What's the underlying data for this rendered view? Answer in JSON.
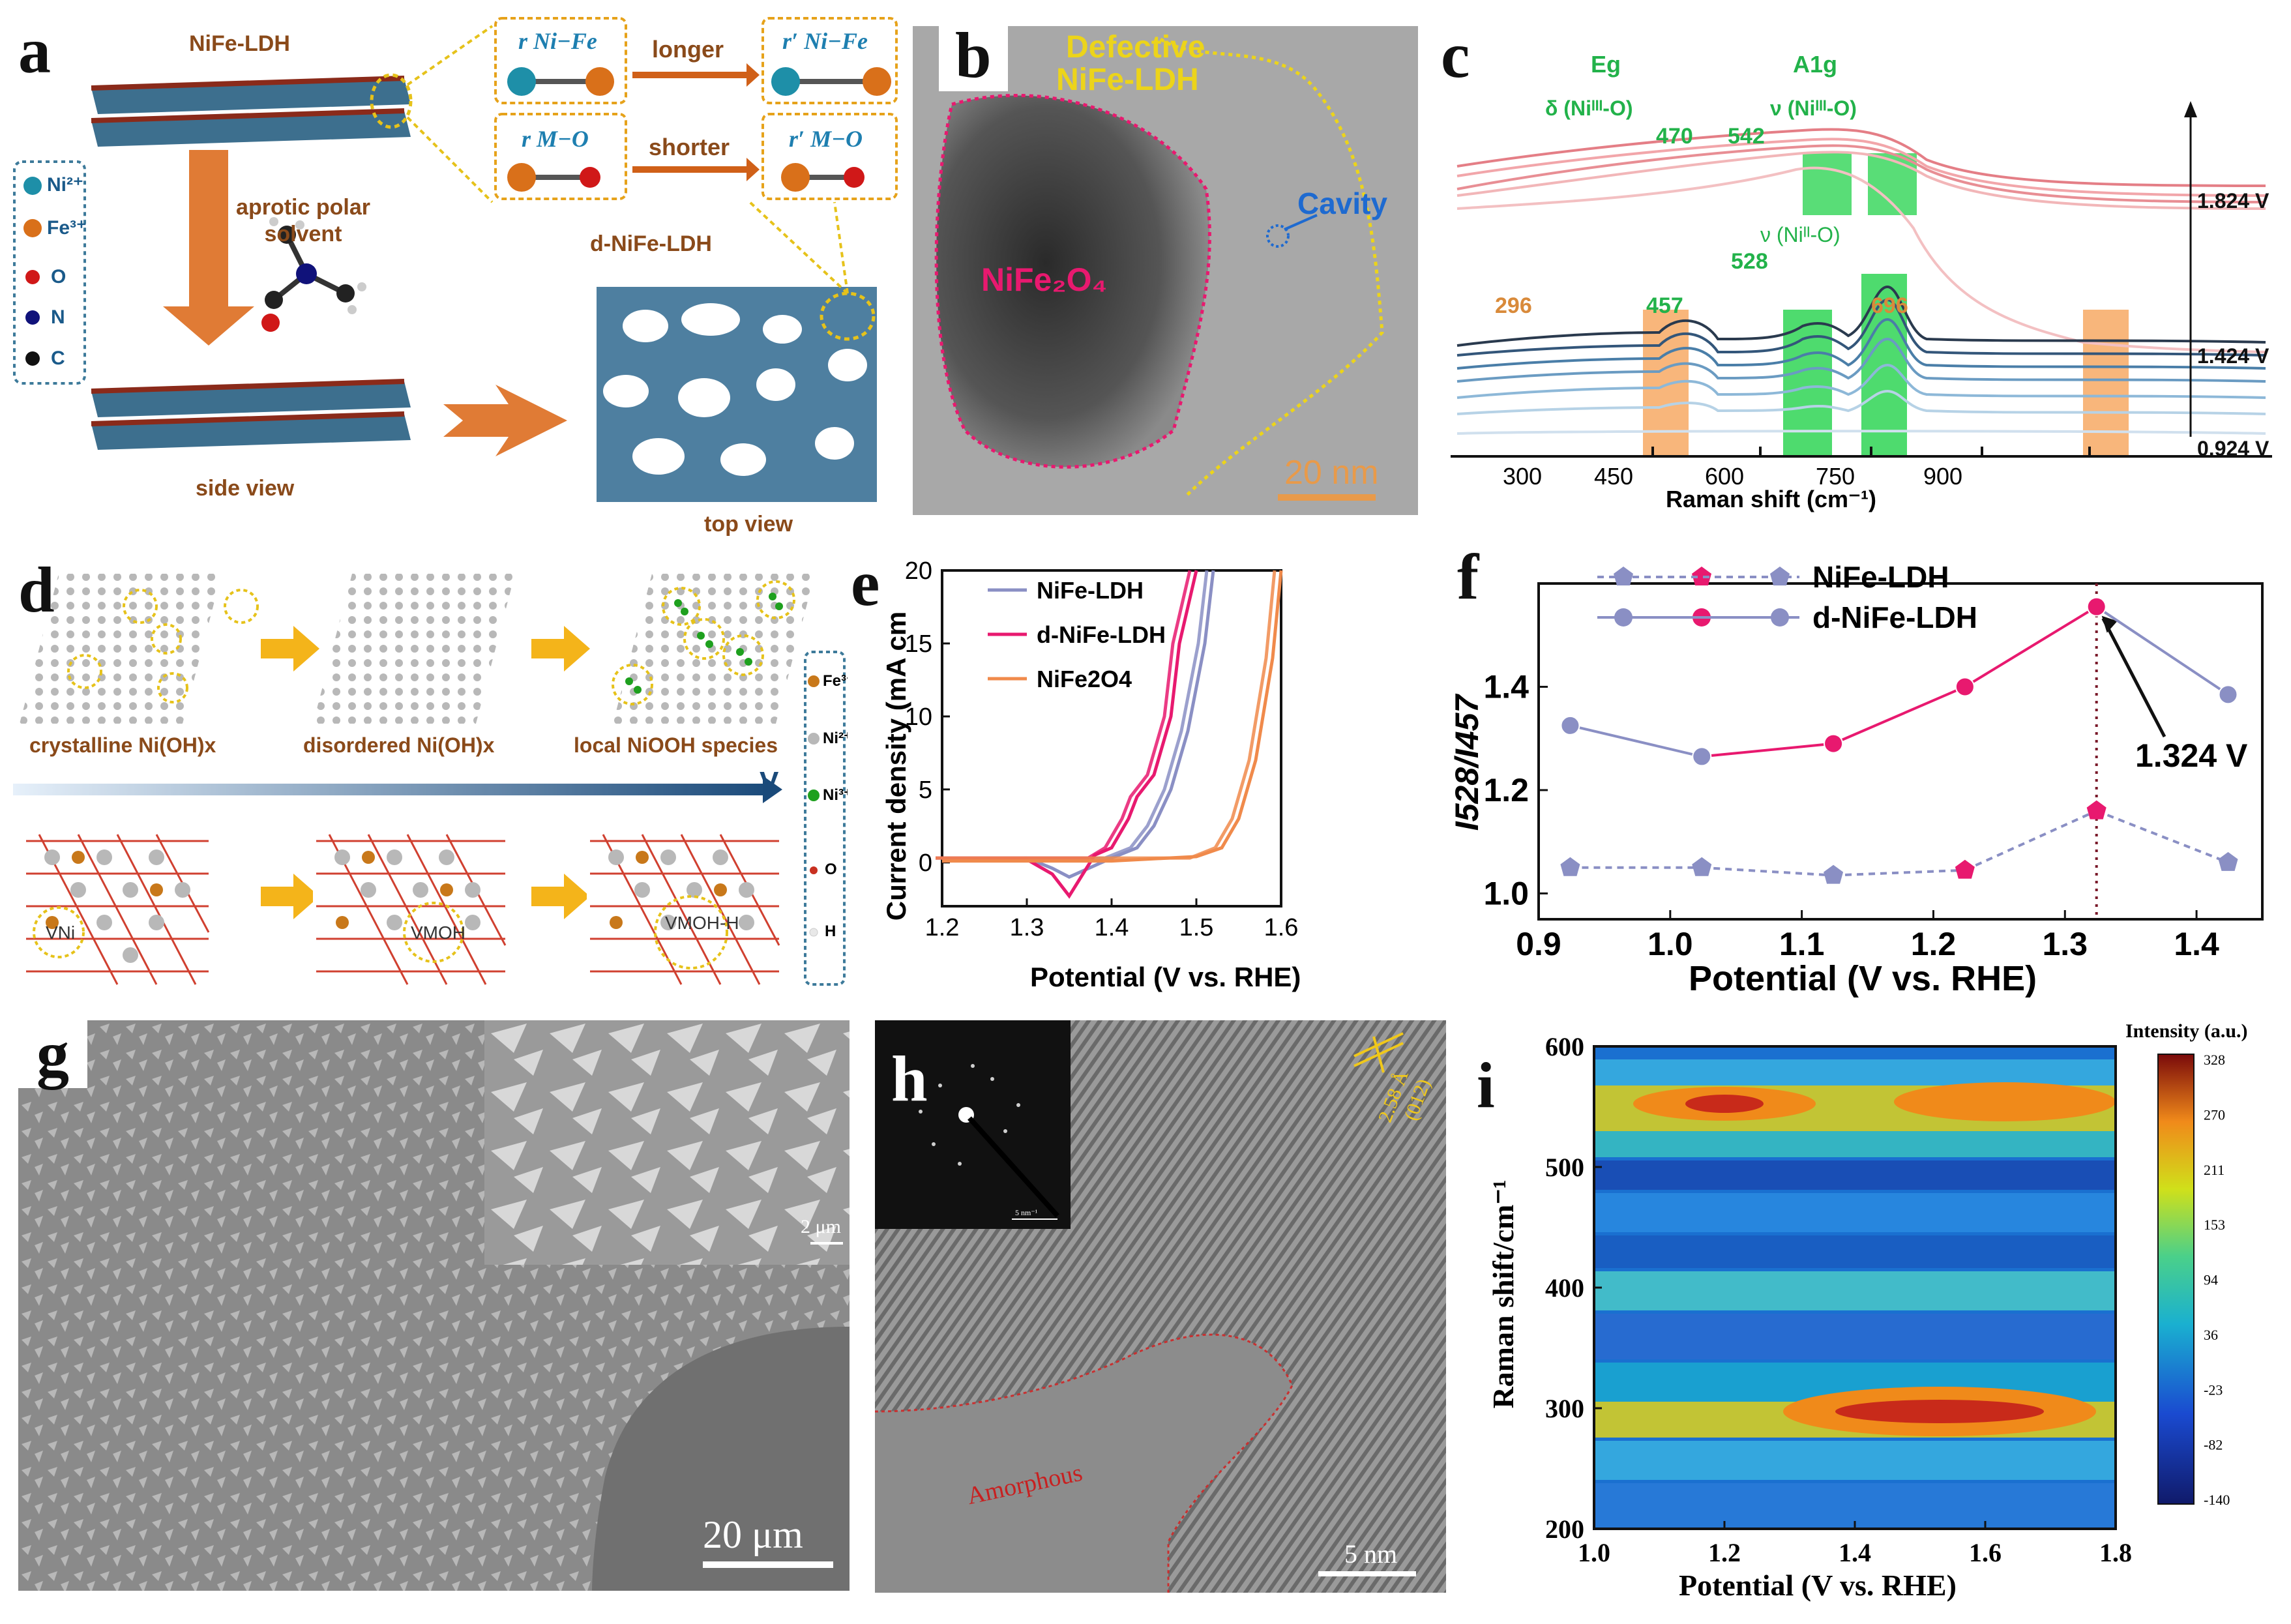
{
  "panel_labels": {
    "a": "a",
    "b": "b",
    "c": "c",
    "d": "d",
    "e": "e",
    "f": "f",
    "g": "g",
    "h": "h",
    "i": "i"
  },
  "panel_a": {
    "top_material": "NiFe-LDH",
    "legend": [
      "Ni²⁺",
      "Fe³⁺",
      "O",
      "N",
      "C"
    ],
    "legend_colors": [
      "#1e8fa8",
      "#d9701a",
      "#d01818",
      "#10127a",
      "#111111"
    ],
    "solvent": "aprotic polar solvent",
    "side_view": "side view",
    "top_view": "top view",
    "product": "d-NiFe-LDH",
    "r1": "r Ni−Fe",
    "r1p": "r′ Ni−Fe",
    "longer": "longer",
    "r2": "r M−O",
    "r2p": "r′ M−O",
    "shorter": "shorter"
  },
  "panel_b": {
    "title_1": "Defective",
    "title_2": "NiFe-LDH",
    "cavity": "Cavity",
    "spinel": "NiFe₂O₄",
    "scalebar": "20 nm"
  },
  "panel_c": {
    "eg": "Eg",
    "eg_mode": "δ (Niᴵᴵᴵ-O)",
    "a1g": "A1g",
    "a1g_mode": "ν (Niᴵᴵᴵ-O)",
    "nu2": "ν (Niᴵᴵ-O)",
    "peaks": [
      "470",
      "542",
      "528",
      "296",
      "457",
      "696"
    ],
    "xticks": [
      "300",
      "450",
      "600",
      "750",
      "900"
    ],
    "xlabel": "Raman shift (cm⁻¹)",
    "potentials": [
      "1.824 V",
      "1.424 V",
      "0.924 V"
    ]
  },
  "panel_d": {
    "stage1": "crystalline Ni(OH)x",
    "stage2": "disordered Ni(OH)x",
    "stage3": "local NiOOH species",
    "axis": "V",
    "v1": "VNi",
    "v2": "VMOH",
    "v3": "VMOH-H",
    "legend": [
      "Fe³⁺",
      "Ni²⁺",
      "Ni³⁺",
      "O",
      "H"
    ],
    "legend_colors": [
      "#c8781a",
      "#b8b8b8",
      "#1ea01e",
      "#c83020",
      "#e8e8e8"
    ]
  },
  "panel_e": {
    "ylabel": "Current density (mA cm",
    "xlabel": "Potential (V vs. RHE)",
    "xticks": [
      "1.2",
      "1.3",
      "1.4",
      "1.5",
      "1.6"
    ],
    "yticks": [
      "0",
      "5",
      "10",
      "15",
      "20"
    ],
    "legend": [
      "NiFe-LDH",
      "d-NiFe-LDH",
      "NiFe2O4"
    ]
  },
  "panel_f": {
    "ylabel": "I528/I457",
    "xlabel": "Potential (V vs. RHE)",
    "xticks": [
      "0.9",
      "1.0",
      "1.1",
      "1.2",
      "1.3",
      "1.4"
    ],
    "yticks": [
      "1.0",
      "1.2",
      "1.4"
    ],
    "legend": [
      "NiFe-LDH",
      "d-NiFe-LDH"
    ],
    "annotation": "1.324 V"
  },
  "panel_g": {
    "inset_scale": "2 μm",
    "scalebar": "20 μm"
  },
  "panel_h": {
    "amorphous": "Amorphous",
    "dspacing": "2.58 Å",
    "plane": "(012)",
    "scalebar": "5 nm",
    "inset_scale": "5 nm⁻¹"
  },
  "panel_i": {
    "ylabel": "Raman shift/cm⁻¹",
    "xlabel": "Potential (V vs. RHE)",
    "xticks": [
      "1.0",
      "1.2",
      "1.4",
      "1.6",
      "1.8"
    ],
    "yticks": [
      "600",
      "500",
      "400",
      "300",
      "200"
    ],
    "colorbar_title": "Intensity (a.u.)",
    "colorbar_ticks": [
      "328",
      "270",
      "211",
      "153",
      "94",
      "36",
      "-23",
      "-82",
      "-140"
    ]
  },
  "chart_data": [
    {
      "type": "line",
      "panel": "e",
      "title": "",
      "xlabel": "Potential (V vs. RHE)",
      "ylabel": "Current density (mA cm-2)",
      "xlim": [
        1.2,
        1.6
      ],
      "ylim": [
        -3,
        20
      ],
      "series": [
        {
          "name": "NiFe-LDH",
          "color": "#8a8fc4",
          "x": [
            1.2,
            1.3,
            1.33,
            1.35,
            1.4,
            1.43,
            1.45,
            1.47,
            1.49,
            1.51,
            1.52
          ],
          "y": [
            0.1,
            0.3,
            -0.4,
            -1.0,
            0.3,
            1,
            2.5,
            5,
            9,
            15,
            20
          ]
        },
        {
          "name": "d-NiFe-LDH",
          "color": "#e8196f",
          "x": [
            1.2,
            1.3,
            1.33,
            1.35,
            1.38,
            1.4,
            1.42,
            1.43,
            1.45,
            1.47,
            1.48,
            1.5
          ],
          "y": [
            0.1,
            0.2,
            -0.8,
            -2.3,
            0.5,
            1,
            3,
            4.5,
            6,
            10,
            15,
            20
          ]
        },
        {
          "name": "NiFe2O4",
          "color": "#f08a4b",
          "x": [
            1.2,
            1.4,
            1.5,
            1.53,
            1.55,
            1.57,
            1.59,
            1.6
          ],
          "y": [
            0.1,
            0.1,
            0.4,
            1,
            3,
            7,
            14,
            20
          ]
        }
      ]
    },
    {
      "type": "line",
      "panel": "f",
      "title": "",
      "xlabel": "Potential (V vs. RHE)",
      "ylabel": "I528/I457",
      "xlim": [
        0.9,
        1.45
      ],
      "ylim": [
        0.95,
        1.6
      ],
      "series": [
        {
          "name": "NiFe-LDH",
          "x": [
            0.924,
            1.024,
            1.124,
            1.224,
            1.324,
            1.424
          ],
          "y": [
            1.05,
            1.05,
            1.035,
            1.045,
            1.16,
            1.06
          ]
        },
        {
          "name": "d-NiFe-LDH",
          "x": [
            0.924,
            1.024,
            1.124,
            1.224,
            1.324,
            1.424
          ],
          "y": [
            1.325,
            1.265,
            1.29,
            1.4,
            1.555,
            1.385
          ]
        }
      ]
    },
    {
      "type": "heatmap",
      "panel": "i",
      "xlabel": "Potential (V vs. RHE)",
      "ylabel": "Raman shift/cm-1",
      "xlim": [
        1.0,
        1.8
      ],
      "ylim": [
        200,
        600
      ],
      "colorbar_range": [
        -140,
        328
      ]
    }
  ]
}
